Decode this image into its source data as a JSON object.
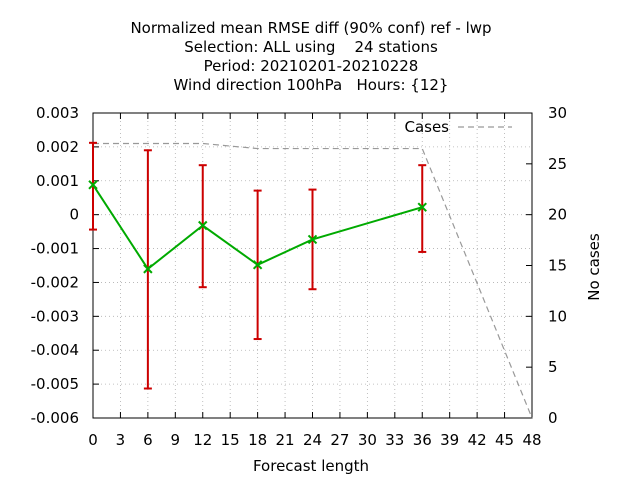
{
  "chart_data": {
    "type": "line",
    "title_lines": [
      "Normalized mean RMSE diff (90% conf) ref - lwp",
      "Selection: ALL using    24 stations",
      "Period: 20210201-20210228",
      "Wind direction 100hPa   Hours: {12}"
    ],
    "xlabel": "Forecast length",
    "ylabel": "",
    "y2label": "No cases",
    "xlim": [
      0,
      48
    ],
    "ylim": [
      -0.006,
      0.003
    ],
    "y2lim": [
      0,
      30
    ],
    "xticks": [
      "0",
      "3",
      "6",
      "9",
      "12",
      "15",
      "18",
      "21",
      "24",
      "27",
      "30",
      "33",
      "36",
      "39",
      "42",
      "45",
      "48"
    ],
    "yticks": [
      "0.003",
      "0.002",
      "0.001",
      "0",
      "-0.001",
      "-0.002",
      "-0.003",
      "-0.004",
      "-0.005",
      "-0.006"
    ],
    "y2ticks": [
      "30",
      "25",
      "20",
      "15",
      "10",
      "5",
      "0"
    ],
    "grid": true,
    "legend_placement": "top-right",
    "series": [
      {
        "x": [
          0,
          6,
          12,
          18,
          24,
          36
        ],
        "y": [
          0.00088,
          -0.0016,
          -0.00032,
          -0.00148,
          -0.00073,
          0.00022
        ],
        "err_low": [
          -0.00044,
          -0.00513,
          -0.00214,
          -0.00367,
          -0.0022,
          -0.0011
        ],
        "err_high": [
          0.00212,
          0.0019,
          0.00146,
          0.00071,
          0.00074,
          0.00146
        ],
        "color": "#00aa00",
        "error_color": "#cc0000"
      },
      {
        "name": "Cases",
        "axis": "y2",
        "x": [
          0,
          12,
          18,
          24,
          36,
          48
        ],
        "y": [
          27,
          27,
          26.5,
          26.5,
          26.5,
          0
        ],
        "color": "#999999",
        "dash": true
      }
    ]
  }
}
